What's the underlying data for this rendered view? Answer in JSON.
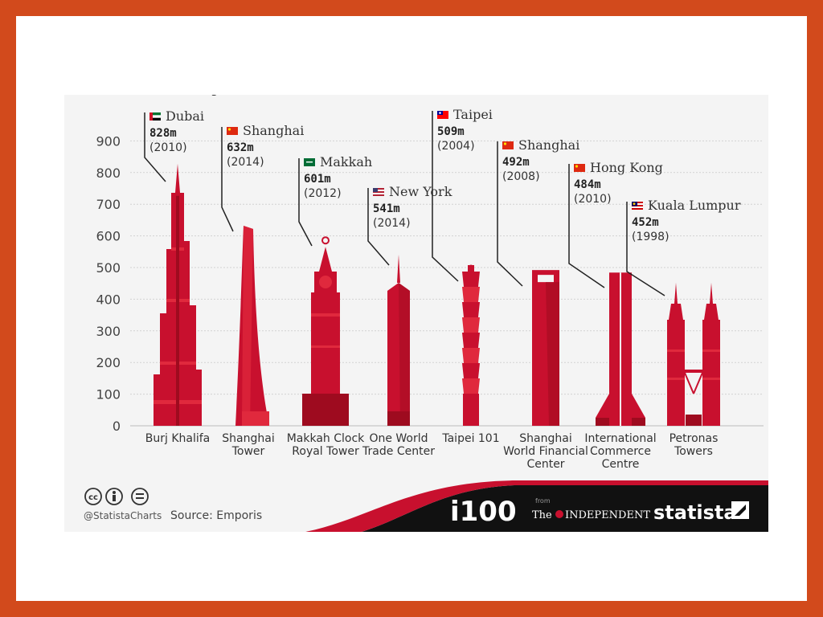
{
  "chart_data": {
    "type": "bar",
    "subtitle_fragment": "g                    (              )",
    "ylim": [
      0,
      900
    ],
    "yticks": [
      0,
      100,
      200,
      300,
      400,
      500,
      600,
      700,
      800,
      900
    ],
    "categories": [
      "Burj Khalifa",
      "Shanghai Tower",
      "Makkah Clock Royal Tower",
      "One World Trade Center",
      "Taipei 101",
      "Shanghai World Financial Center",
      "International Commerce Centre",
      "Petronas Towers"
    ],
    "category_lines": [
      [
        "Burj Khalifa"
      ],
      [
        "Shanghai",
        "Tower"
      ],
      [
        "Makkah Clock",
        "Royal Tower"
      ],
      [
        "One World",
        "Trade Center"
      ],
      [
        "Taipei 101"
      ],
      [
        "Shanghai",
        "World  Financial",
        "Center"
      ],
      [
        "International",
        "Commerce",
        "Centre"
      ],
      [
        "Petronas",
        "Towers"
      ]
    ],
    "values": [
      828,
      632,
      601,
      541,
      509,
      492,
      484,
      452
    ],
    "value_labels": [
      "828m",
      "632m",
      "601m",
      "541m",
      "509m",
      "492m",
      "484m",
      "452m"
    ],
    "cities": [
      "Dubai",
      "Shanghai",
      "Makkah",
      "New York",
      "Taipei",
      "Shanghai",
      "Hong Kong",
      "Kuala Lumpur"
    ],
    "years": [
      "(2010)",
      "(2014)",
      "(2012)",
      "(2014)",
      "(2004)",
      "(2008)",
      "(2010)",
      "(1998)"
    ],
    "flags": [
      "uae-flag",
      "china-flag",
      "saudi-flag",
      "usa-flag",
      "taiwan-flag",
      "china-flag",
      "china-flag",
      "malaysia-flag"
    ],
    "grid": true
  },
  "footer": {
    "handle": "@StatistaCharts",
    "source": "Source: Emporis",
    "i100": "i100",
    "from": "from",
    "independent": "INDEPENDENT",
    "the": "The",
    "statista": "statista"
  },
  "colors": {
    "building": "#c8102e",
    "building_dark": "#9e0b1f",
    "building_light": "#e0293d",
    "frame": "#d24a1c",
    "footer_black": "#111111"
  }
}
